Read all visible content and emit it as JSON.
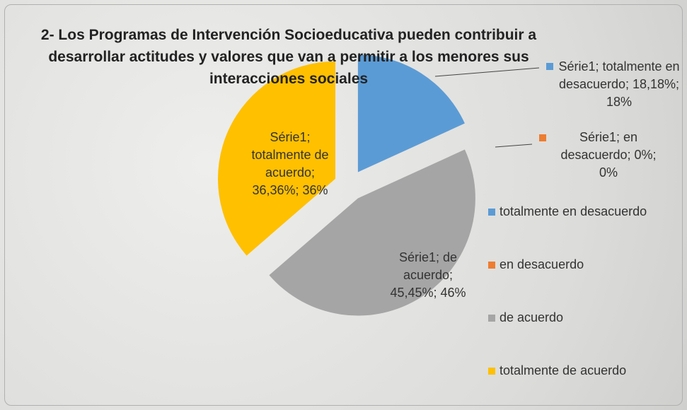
{
  "chart_data": {
    "type": "pie",
    "title": "2- Los Programas de Intervención Socioeducativa pueden contribuir a desarrollar actitudes y valores que van a permitir a los menores sus interacciones sociales",
    "categories": [
      "totalmente en desacuerdo",
      "en desacuerdo",
      "de acuerdo",
      "totalmente de acuerdo"
    ],
    "values": [
      18.18,
      0,
      45.45,
      36.36
    ],
    "value_labels": [
      "Série1; totalmente en desacuerdo; 18,18%; 18%",
      "Série1; en desacuerdo; 0%; 0%",
      "Série1; de acuerdo; 45,45%; 46%",
      "Série1; totalmente de acuerdo; 36,36%; 36%"
    ],
    "colors": [
      "#5b9bd5",
      "#ed7d31",
      "#a5a5a5",
      "#ffc000"
    ],
    "legend": "right"
  }
}
